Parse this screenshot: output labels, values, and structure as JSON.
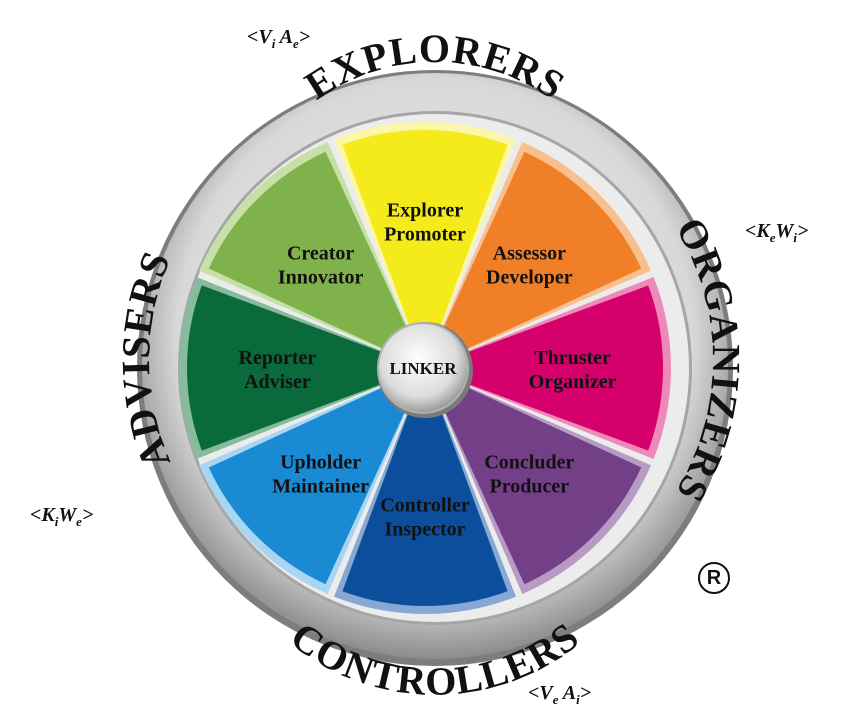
{
  "ring": {
    "top": "EXPLORERS",
    "right": "ORGANIZERS",
    "bottom": "CONTROLLERS",
    "left": "ADVISERS"
  },
  "hub": {
    "label": "LINKER"
  },
  "segments": [
    {
      "line1": "Explorer",
      "line2": "Promoter",
      "color": "#f5ea1a",
      "light": "#fbf6a8"
    },
    {
      "line1": "Assessor",
      "line2": "Developer",
      "color": "#f07f27",
      "light": "#f8c08f"
    },
    {
      "line1": "Thruster",
      "line2": "Organizer",
      "color": "#d6006c",
      "light": "#ee8ab8"
    },
    {
      "line1": "Concluder",
      "line2": "Producer",
      "color": "#733f86",
      "light": "#b79bc4"
    },
    {
      "line1": "Controller",
      "line2": "Inspector",
      "color": "#0b4f9c",
      "light": "#86a8d2"
    },
    {
      "line1": "Upholder",
      "line2": "Maintainer",
      "color": "#1a8ad4",
      "light": "#a8d6f2"
    },
    {
      "line1": "Reporter",
      "line2": "Adviser",
      "color": "#0b6a3c",
      "light": "#86bb9c"
    },
    {
      "line1": "Creator",
      "line2": "Innovator",
      "color": "#7fb24a",
      "light": "#c6e0a8"
    }
  ],
  "corners": {
    "top": {
      "a": "V",
      "a_sub": "i",
      "b": "A",
      "b_sub": "e"
    },
    "right": {
      "a": "K",
      "a_sub": "e",
      "b": "W",
      "b_sub": "i"
    },
    "bottom": {
      "a": "V",
      "a_sub": "e",
      "b": "A",
      "b_sub": "i"
    },
    "left": {
      "a": "K",
      "a_sub": "i",
      "b": "W",
      "b_sub": "e"
    }
  },
  "registered_mark": "R"
}
